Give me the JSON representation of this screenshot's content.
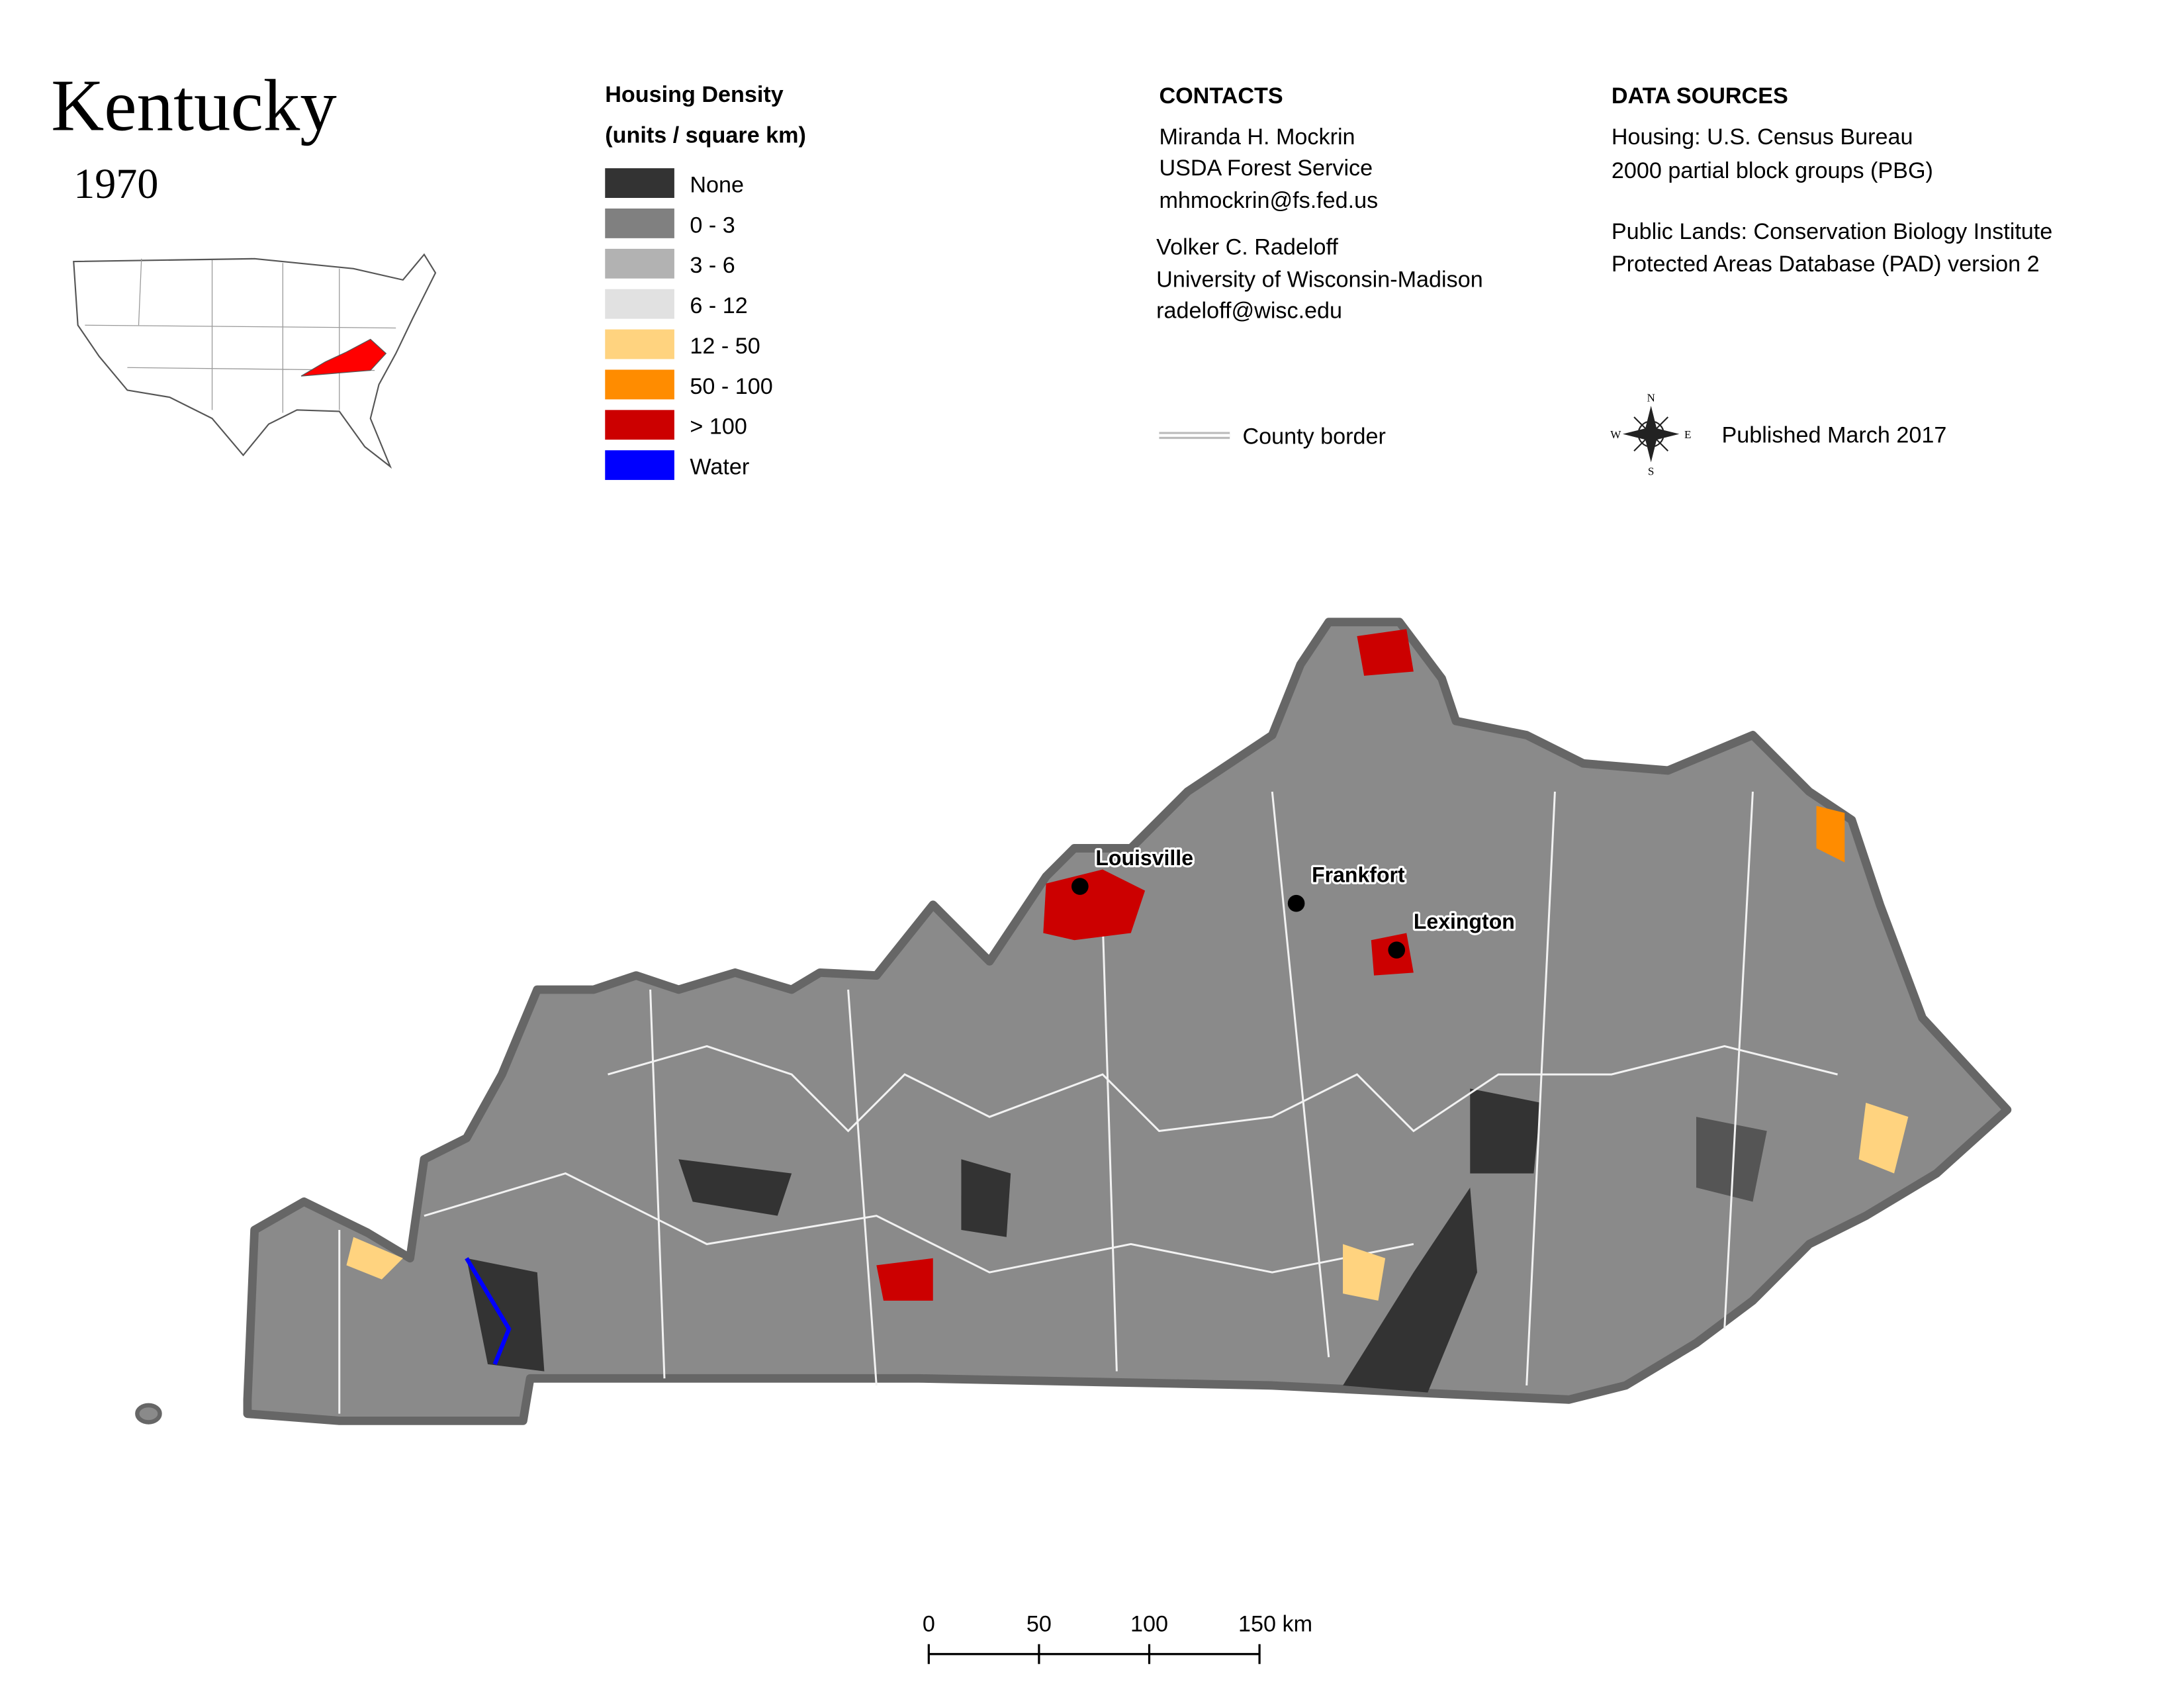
{
  "header": {
    "title": "Kentucky",
    "year": "1970"
  },
  "legend": {
    "title": "Housing Density",
    "subtitle": "(units / square km)",
    "items": [
      {
        "label": "None",
        "color": "#333333"
      },
      {
        "label": "0 - 3",
        "color": "#808080"
      },
      {
        "label": "3 - 6",
        "color": "#b2b2b2"
      },
      {
        "label": "6 - 12",
        "color": "#e1e1e1"
      },
      {
        "label": "12 - 50",
        "color": "#ffd37f"
      },
      {
        "label": "50 - 100",
        "color": "#ff8c00"
      },
      {
        "label": "> 100",
        "color": "#cc0000"
      },
      {
        "label": "Water",
        "color": "#0000ff"
      }
    ]
  },
  "contacts": {
    "heading": "CONTACTS",
    "people": [
      [
        "Miranda H. Mockrin",
        "USDA Forest Service",
        "mhmockrin@fs.fed.us"
      ],
      [
        "Volker C. Radeloff",
        "University of Wisconsin-Madison",
        "radeloff@wisc.edu"
      ]
    ]
  },
  "data_sources": {
    "heading": "DATA SOURCES",
    "blocks": [
      [
        "Housing: U.S. Census Bureau",
        "2000 partial block groups (PBG)"
      ],
      [
        "Public Lands: Conservation Biology Institute",
        "Protected Areas Database (PAD) version 2"
      ]
    ]
  },
  "county_border": "County border",
  "compass": {
    "n": "N",
    "s": "S",
    "w": "W",
    "e": "E"
  },
  "published": "Published March 2017",
  "cities": [
    "Louisville",
    "Frankfort",
    "Lexington"
  ],
  "scale_bar": [
    "0",
    "50",
    "100",
    "150 km"
  ]
}
